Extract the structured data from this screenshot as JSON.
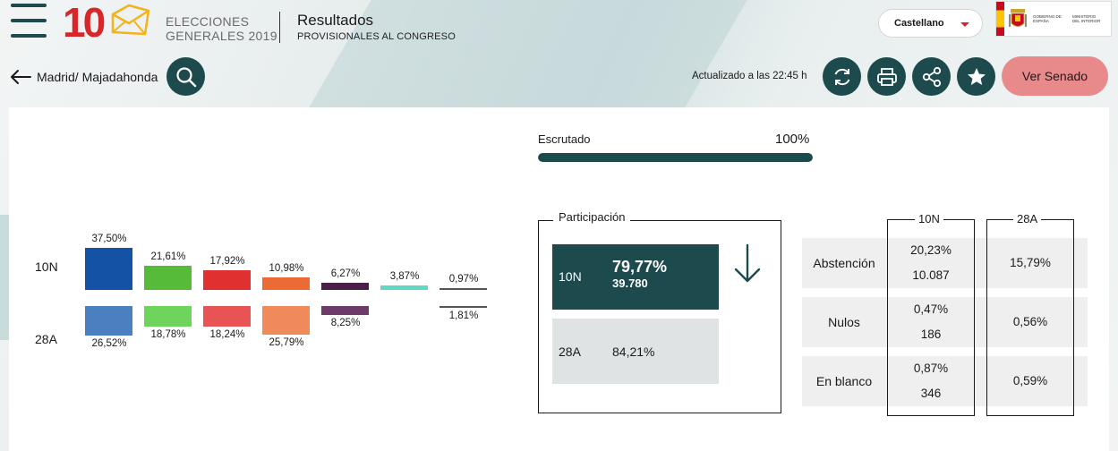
{
  "header": {
    "logo_number": "10",
    "logo_line1": "ELECCIONES",
    "logo_line2": "GENERALES 2019",
    "results_title": "Resultados",
    "results_subtitle": "PROVISIONALES AL CONGRESO",
    "language": "Castellano",
    "gov_text1": "GOBIERNO DE ESPAÑA",
    "gov_text2": "MINISTERIO DEL INTERIOR"
  },
  "toolbar": {
    "breadcrumb": "Madrid/ Majadahonda",
    "updated": "Actualizado a las 22:45 h",
    "senado_label": "Ver Senado"
  },
  "escrutado": {
    "label": "Escrutado",
    "value": "100%",
    "fraction": 1.0
  },
  "chart_data": {
    "type": "bar",
    "rows": [
      "10N",
      "28A"
    ],
    "series": [
      {
        "values": [
          37.5,
          26.52
        ],
        "labels": [
          "37,50%",
          "26,52%"
        ],
        "colors": [
          "#1452a5",
          "#4a80c0"
        ]
      },
      {
        "values": [
          21.61,
          18.78
        ],
        "labels": [
          "21,61%",
          "18,78%"
        ],
        "colors": [
          "#55bb38",
          "#6fd45b"
        ]
      },
      {
        "values": [
          17.92,
          18.24
        ],
        "labels": [
          "17,92%",
          "18,24%"
        ],
        "colors": [
          "#e13030",
          "#e85454"
        ]
      },
      {
        "values": [
          10.98,
          25.79
        ],
        "labels": [
          "10,98%",
          "25,79%"
        ],
        "colors": [
          "#ec6a33",
          "#f08a5a"
        ]
      },
      {
        "values": [
          6.27,
          8.25
        ],
        "labels": [
          "6,27%",
          "8,25%"
        ],
        "colors": [
          "#4b1d48",
          "#6e3a6a"
        ]
      },
      {
        "values": [
          3.87,
          null
        ],
        "labels": [
          "3,87%",
          ""
        ],
        "colors": [
          "#5fd8c6",
          "#5fd8c6"
        ]
      },
      {
        "values": [
          0.97,
          1.81
        ],
        "labels": [
          "0,97%",
          "1,81%"
        ],
        "colors": [
          "#555555",
          "#555555"
        ]
      }
    ]
  },
  "participacion": {
    "title": "Participación",
    "current": {
      "label": "10N",
      "pct": "79,77%",
      "votes": "39.780"
    },
    "previous": {
      "label": "28A",
      "pct": "84,21%"
    }
  },
  "stats": {
    "col1": "10N",
    "col2": "28A",
    "rows": [
      {
        "label": "Abstención",
        "v10n_pct": "20,23%",
        "v10n_num": "10.087",
        "v28a": "15,79%"
      },
      {
        "label": "Nulos",
        "v10n_pct": "0,47%",
        "v10n_num": "186",
        "v28a": "0,56%"
      },
      {
        "label": "En blanco",
        "v10n_pct": "0,87%",
        "v10n_num": "346",
        "v28a": "0,59%"
      }
    ]
  },
  "colors": {
    "accent": "#1c4a4d",
    "brand_red": "#d9262a",
    "senado_button": "#e8898c"
  },
  "icons": [
    "menu-icon",
    "envelope-icon",
    "chevron-down-icon",
    "arrow-left-icon",
    "search-icon",
    "refresh-icon",
    "print-icon",
    "share-icon",
    "star-icon",
    "arrow-down-icon"
  ]
}
